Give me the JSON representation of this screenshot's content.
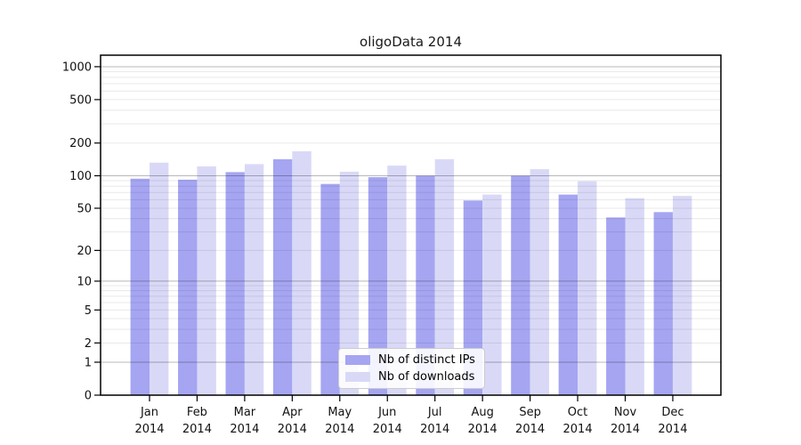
{
  "chart_data": {
    "type": "bar",
    "title": "oligoData 2014",
    "categories": [
      "Jan",
      "Feb",
      "Mar",
      "Apr",
      "May",
      "Jun",
      "Jul",
      "Aug",
      "Sep",
      "Oct",
      "Nov",
      "Dec"
    ],
    "category_year": "2014",
    "series": [
      {
        "name": "Nb of distinct IPs",
        "color": "#a5a5f2",
        "values": [
          94,
          92,
          108,
          142,
          84,
          97,
          100,
          59,
          100,
          67,
          41,
          46
        ]
      },
      {
        "name": "Nb of downloads",
        "color": "#d9d9f7",
        "values": [
          132,
          122,
          128,
          168,
          109,
          124,
          142,
          67,
          115,
          89,
          62,
          65
        ]
      }
    ],
    "yscale": "log1p",
    "yticks": [
      0,
      1,
      2,
      5,
      10,
      20,
      50,
      100,
      200,
      500,
      1000
    ],
    "ylim": [
      0,
      1275
    ],
    "grid": true,
    "legend_position": "bottom-center-inside"
  },
  "colors": {
    "major_gridline": "rgba(0,0,0,0.28)",
    "minor_gridline": "rgba(0,0,0,0.09)",
    "axis": "#000000"
  }
}
